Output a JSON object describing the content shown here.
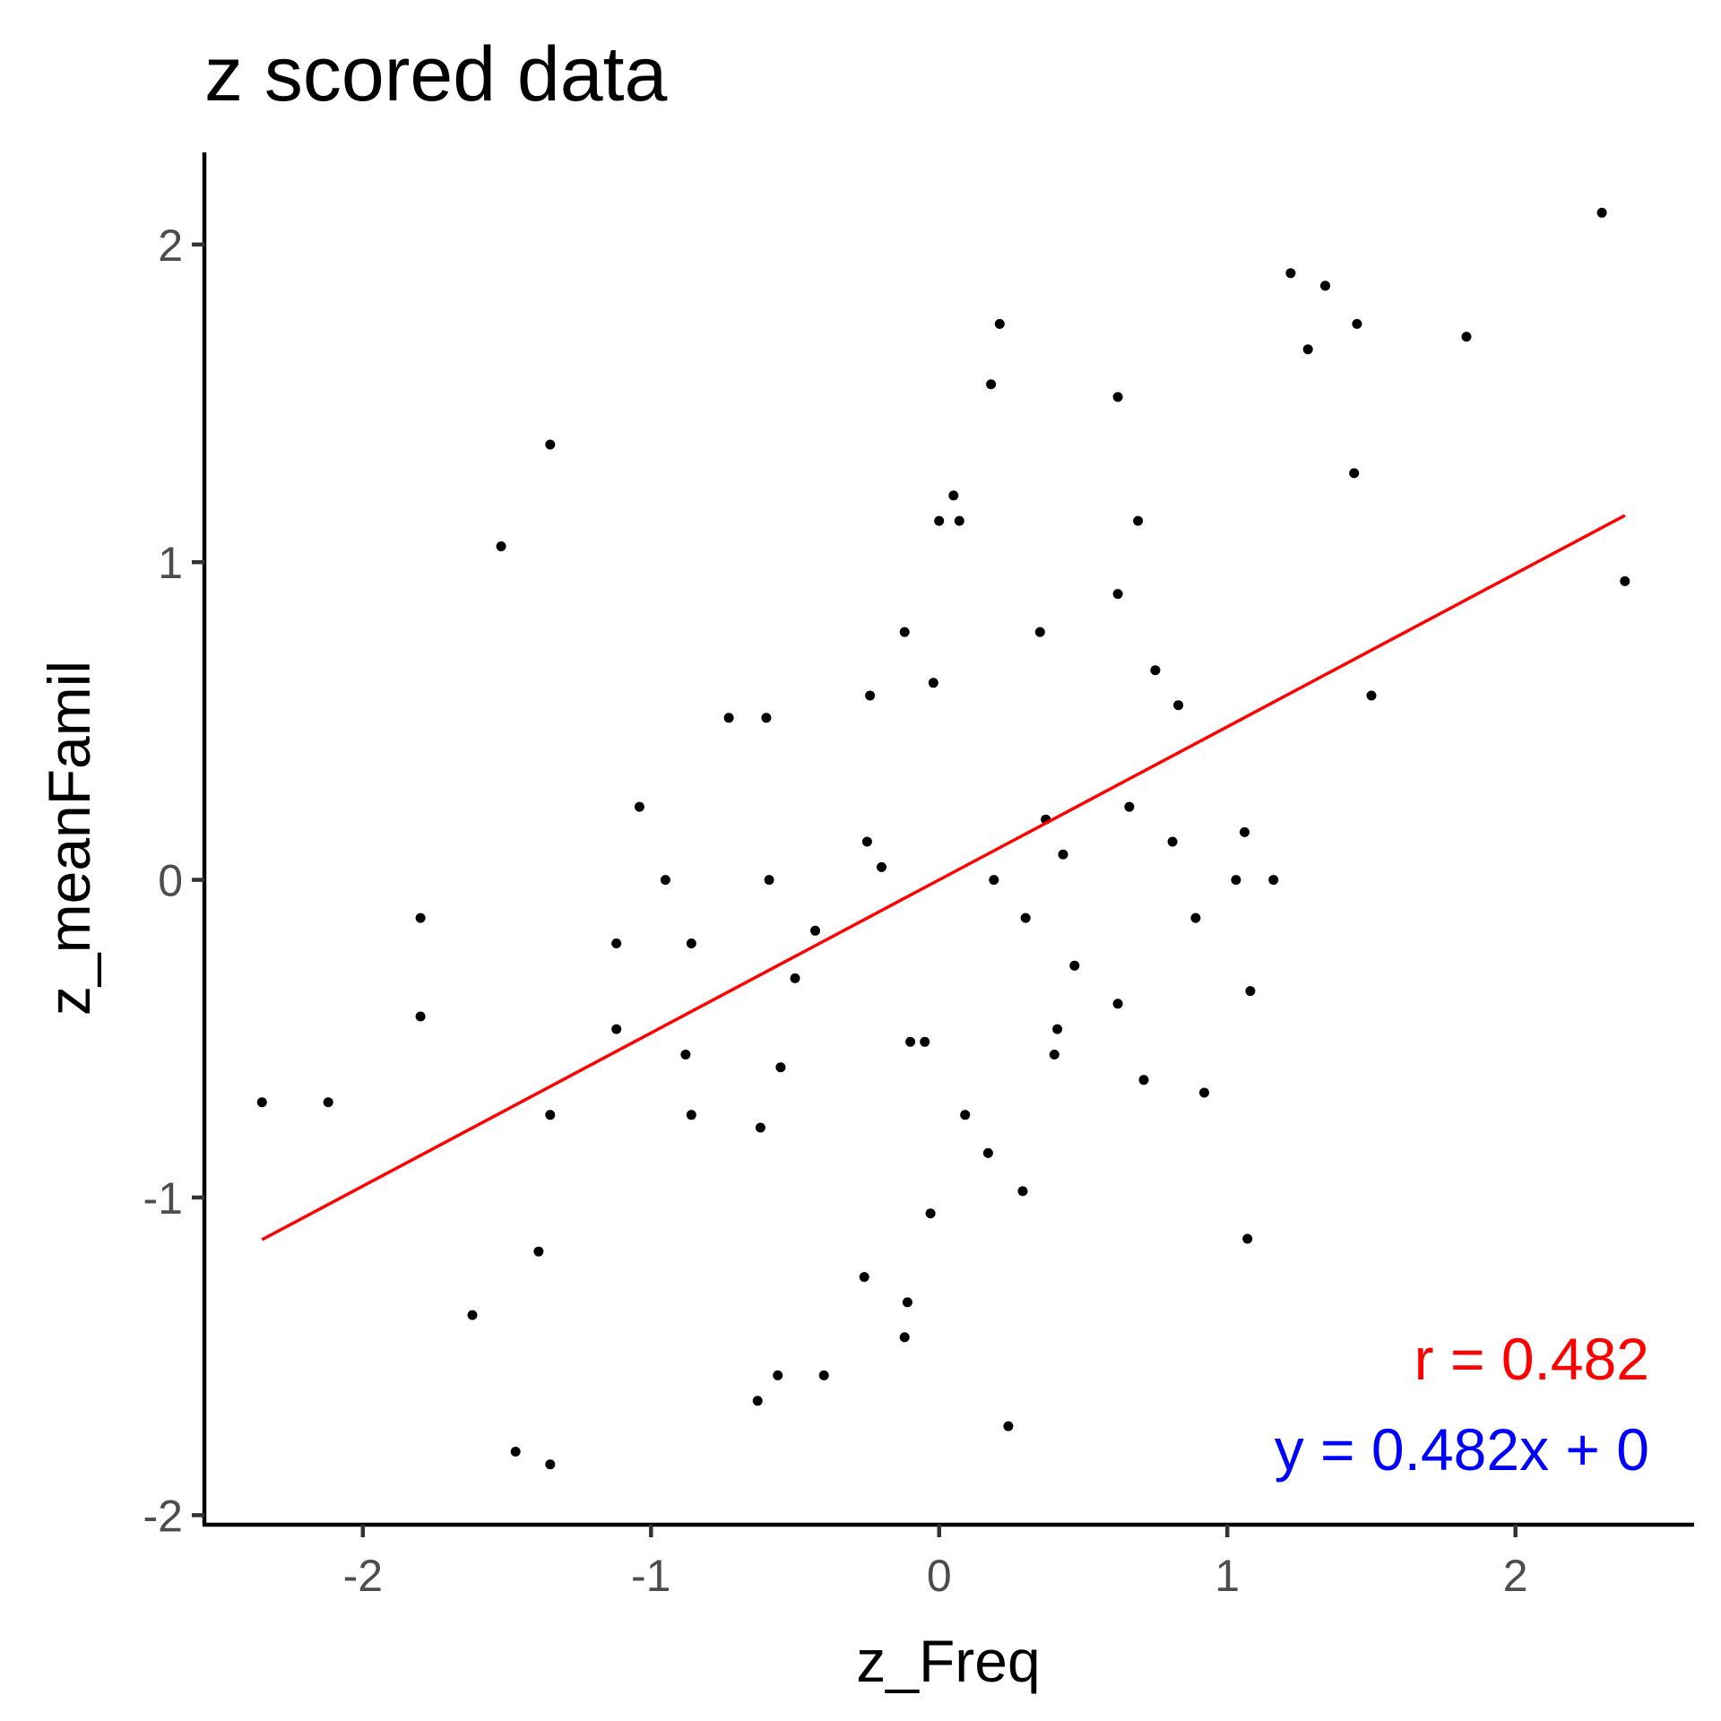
{
  "chart_data": {
    "type": "scatter",
    "title": "z scored data",
    "xlabel": "z_Freq",
    "ylabel": "z_meanFamil",
    "xlim": [
      -2.55,
      2.62
    ],
    "ylim": [
      -2.03,
      2.29
    ],
    "xticks": [
      -2,
      -1,
      0,
      1,
      2
    ],
    "xtick_labels": [
      "-2",
      "-1",
      "0",
      "1",
      "2"
    ],
    "yticks": [
      -2,
      -1,
      0,
      1,
      2
    ],
    "ytick_labels": [
      "-2",
      "-1",
      "0",
      "1",
      "2"
    ],
    "grid": false,
    "legend": null,
    "points": [
      {
        "x": 2.3,
        "y": 2.1
      },
      {
        "x": 1.22,
        "y": 1.91
      },
      {
        "x": 1.34,
        "y": 1.87
      },
      {
        "x": 0.21,
        "y": 1.75
      },
      {
        "x": 1.45,
        "y": 1.75
      },
      {
        "x": 1.83,
        "y": 1.71
      },
      {
        "x": 1.28,
        "y": 1.67
      },
      {
        "x": 0.18,
        "y": 1.56
      },
      {
        "x": 0.62,
        "y": 1.52
      },
      {
        "x": -1.35,
        "y": 1.37
      },
      {
        "x": 1.44,
        "y": 1.28
      },
      {
        "x": 0.05,
        "y": 1.21
      },
      {
        "x": 0.0,
        "y": 1.13
      },
      {
        "x": 0.07,
        "y": 1.13
      },
      {
        "x": 0.69,
        "y": 1.13
      },
      {
        "x": -1.52,
        "y": 1.05
      },
      {
        "x": 2.38,
        "y": 0.94
      },
      {
        "x": 0.62,
        "y": 0.9
      },
      {
        "x": -0.12,
        "y": 0.78
      },
      {
        "x": 0.35,
        "y": 0.78
      },
      {
        "x": 0.75,
        "y": 0.66
      },
      {
        "x": -0.02,
        "y": 0.62
      },
      {
        "x": -0.24,
        "y": 0.58
      },
      {
        "x": 1.5,
        "y": 0.58
      },
      {
        "x": 0.83,
        "y": 0.55
      },
      {
        "x": -0.73,
        "y": 0.51
      },
      {
        "x": -0.6,
        "y": 0.51
      },
      {
        "x": -1.04,
        "y": 0.23
      },
      {
        "x": 0.66,
        "y": 0.23
      },
      {
        "x": 0.37,
        "y": 0.19
      },
      {
        "x": 1.06,
        "y": 0.15
      },
      {
        "x": -0.25,
        "y": 0.12
      },
      {
        "x": 0.81,
        "y": 0.12
      },
      {
        "x": 0.43,
        "y": 0.08
      },
      {
        "x": -0.2,
        "y": 0.04
      },
      {
        "x": -0.95,
        "y": 0.0
      },
      {
        "x": -0.59,
        "y": 0.0
      },
      {
        "x": 0.19,
        "y": 0.0
      },
      {
        "x": 1.03,
        "y": 0.0
      },
      {
        "x": 1.16,
        "y": 0.0
      },
      {
        "x": -1.8,
        "y": -0.12
      },
      {
        "x": 0.3,
        "y": -0.12
      },
      {
        "x": 0.89,
        "y": -0.12
      },
      {
        "x": -0.43,
        "y": -0.16
      },
      {
        "x": -1.12,
        "y": -0.2
      },
      {
        "x": -0.86,
        "y": -0.2
      },
      {
        "x": 0.47,
        "y": -0.27
      },
      {
        "x": -0.5,
        "y": -0.31
      },
      {
        "x": 1.08,
        "y": -0.35
      },
      {
        "x": 0.62,
        "y": -0.39
      },
      {
        "x": -1.8,
        "y": -0.43
      },
      {
        "x": -1.12,
        "y": -0.47
      },
      {
        "x": 0.41,
        "y": -0.47
      },
      {
        "x": -0.1,
        "y": -0.51
      },
      {
        "x": -0.05,
        "y": -0.51
      },
      {
        "x": -0.88,
        "y": -0.55
      },
      {
        "x": 0.4,
        "y": -0.55
      },
      {
        "x": -0.55,
        "y": -0.59
      },
      {
        "x": 0.71,
        "y": -0.63
      },
      {
        "x": 0.92,
        "y": -0.67
      },
      {
        "x": -2.35,
        "y": -0.7
      },
      {
        "x": -2.12,
        "y": -0.7
      },
      {
        "x": -1.35,
        "y": -0.74
      },
      {
        "x": -0.86,
        "y": -0.74
      },
      {
        "x": 0.09,
        "y": -0.74
      },
      {
        "x": -0.62,
        "y": -0.78
      },
      {
        "x": 0.17,
        "y": -0.86
      },
      {
        "x": 0.29,
        "y": -0.98
      },
      {
        "x": -0.03,
        "y": -1.05
      },
      {
        "x": 1.07,
        "y": -1.13
      },
      {
        "x": -1.39,
        "y": -1.17
      },
      {
        "x": -0.26,
        "y": -1.25
      },
      {
        "x": -0.11,
        "y": -1.33
      },
      {
        "x": -1.62,
        "y": -1.37
      },
      {
        "x": -0.12,
        "y": -1.44
      },
      {
        "x": -0.56,
        "y": -1.56
      },
      {
        "x": -0.4,
        "y": -1.56
      },
      {
        "x": -0.63,
        "y": -1.64
      },
      {
        "x": 0.24,
        "y": -1.72
      },
      {
        "x": -1.47,
        "y": -1.8
      },
      {
        "x": -1.35,
        "y": -1.84
      }
    ],
    "fit_line": {
      "slope": 0.482,
      "intercept": 0,
      "x_range": [
        -2.35,
        2.38
      ],
      "color": "#ff0000"
    },
    "annotations": [
      {
        "text": "r = 0.482",
        "color": "#ff0000",
        "position": "bottom-right"
      },
      {
        "text": "y = 0.482x + 0",
        "color": "#0000ff",
        "position": "bottom-right"
      }
    ]
  }
}
